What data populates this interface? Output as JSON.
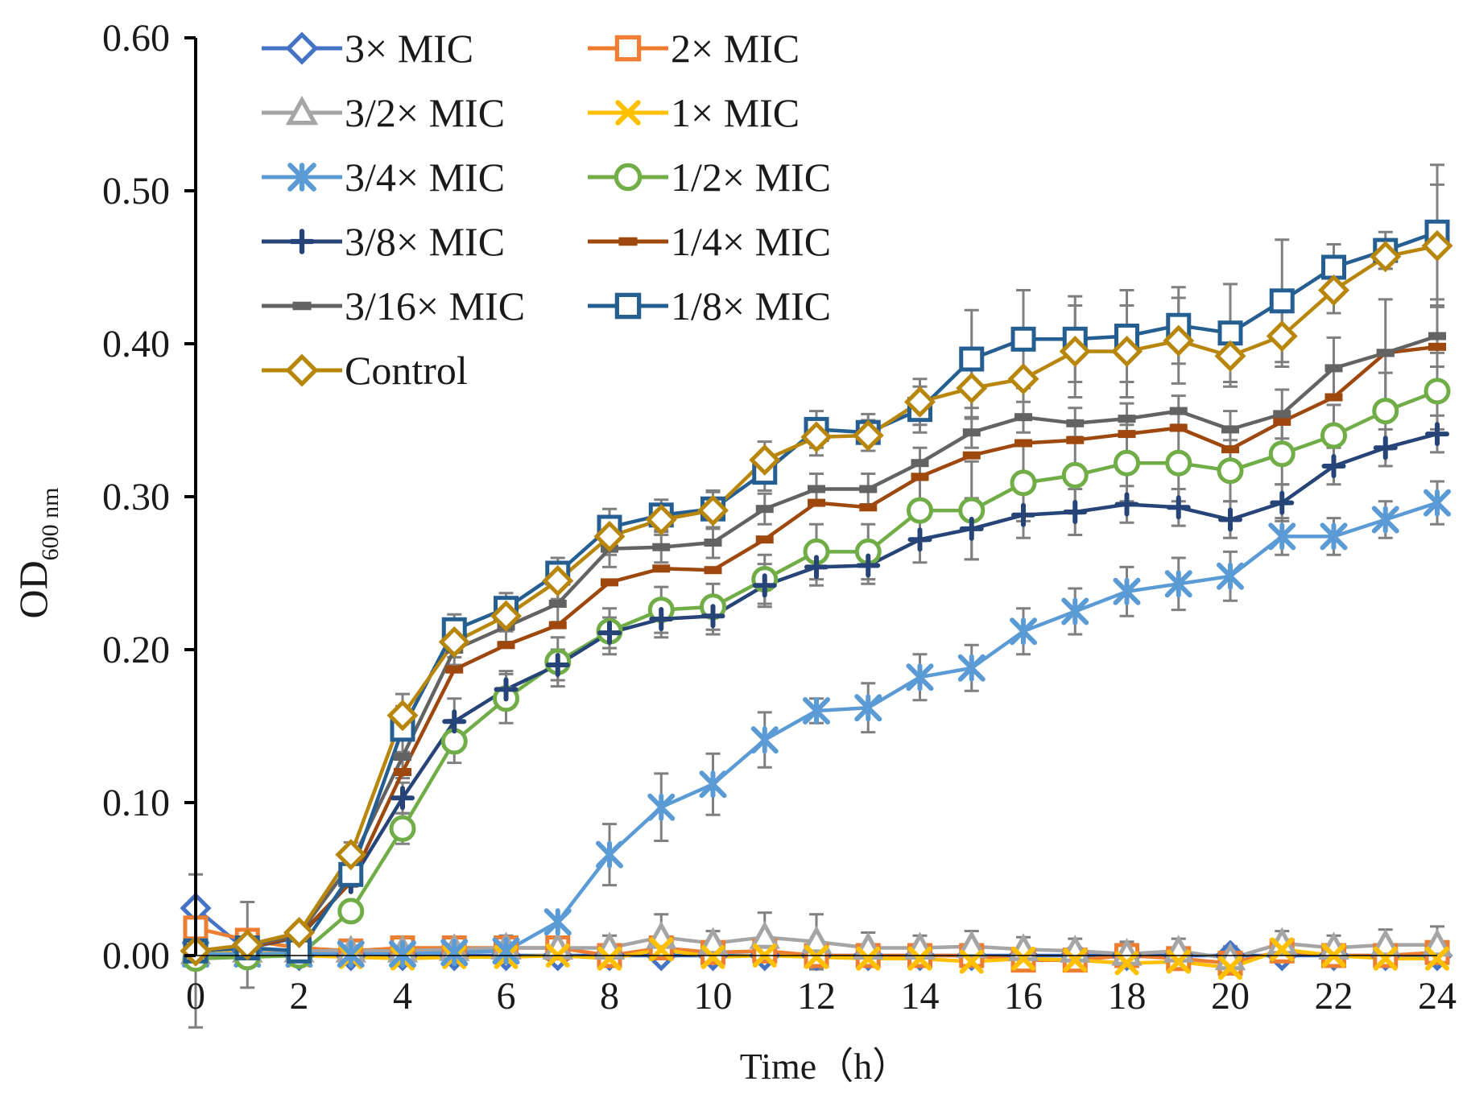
{
  "chart_data": {
    "type": "line",
    "title": "",
    "xlabel": "Time（h）",
    "ylabel_main": "OD",
    "ylabel_sub": "600 nm",
    "x": [
      0,
      1,
      2,
      3,
      4,
      5,
      6,
      7,
      8,
      9,
      10,
      11,
      12,
      13,
      14,
      15,
      16,
      17,
      18,
      19,
      20,
      21,
      22,
      23,
      24
    ],
    "xlim": [
      0,
      24
    ],
    "ylim": [
      0,
      0.6
    ],
    "xticks": [
      0,
      2,
      4,
      6,
      8,
      10,
      12,
      14,
      16,
      18,
      20,
      22,
      24
    ],
    "xtick_labels": [
      "0",
      "2",
      "4",
      "6",
      "8",
      "10",
      "12",
      "14",
      "16",
      "18",
      "20",
      "22",
      "24"
    ],
    "yticks": [
      0,
      0.1,
      0.2,
      0.3,
      0.4,
      0.5,
      0.6
    ],
    "ytick_labels": [
      "0.00",
      "0.10",
      "0.20",
      "0.30",
      "0.40",
      "0.50",
      "0.60"
    ],
    "grid": false,
    "legend_position": "top-left",
    "series": [
      {
        "name": "3× MIC",
        "color": "#4472C4",
        "marker": "diamond-open",
        "values": [
          0.031,
          0.003,
          0.0,
          0.0,
          0.0,
          0.0,
          0.0,
          0.0,
          0.0,
          0.0,
          0.0,
          0.0,
          0.0,
          0.0,
          0.0,
          0.0,
          0.0,
          0.0,
          0.0,
          0.0,
          0.0,
          0.0,
          0.0,
          0.0,
          0.0
        ],
        "errors": [
          0,
          0,
          0,
          0,
          0,
          0,
          0,
          0,
          0,
          0,
          0,
          0,
          0,
          0,
          0,
          0,
          0,
          0,
          0,
          0,
          0,
          0,
          0,
          0,
          0
        ]
      },
      {
        "name": "2× MIC",
        "color": "#ED7D31",
        "marker": "square-open",
        "values": [
          0.018,
          0.01,
          0.005,
          0.003,
          0.005,
          0.005,
          0.005,
          0.005,
          0.0,
          0.005,
          0.002,
          0.003,
          0.0,
          0.0,
          0.0,
          0.0,
          -0.003,
          -0.003,
          0.0,
          -0.002,
          -0.005,
          0.003,
          0.0,
          0.0,
          0.002
        ],
        "errors": [
          0,
          0,
          0,
          0,
          0,
          0,
          0,
          0,
          0,
          0,
          0,
          0,
          0,
          0,
          0,
          0,
          0,
          0,
          0,
          0,
          0,
          0,
          0,
          0,
          0
        ]
      },
      {
        "name": "3/2× MIC",
        "color": "#A5A5A5",
        "marker": "triangle-open",
        "values": [
          0.002,
          0.003,
          0.003,
          0.003,
          0.003,
          0.004,
          0.005,
          0.005,
          0.005,
          0.012,
          0.008,
          0.012,
          0.009,
          0.005,
          0.005,
          0.006,
          0.004,
          0.003,
          0.001,
          0.003,
          -0.002,
          0.008,
          0.005,
          0.007,
          0.007
        ],
        "errors": [
          0,
          0,
          0,
          0,
          0,
          0,
          0.008,
          0,
          0.008,
          0.015,
          0.008,
          0.016,
          0.018,
          0.01,
          0.008,
          0.01,
          0.008,
          0.008,
          0.008,
          0.008,
          0.008,
          0.008,
          0.008,
          0.01,
          0.012
        ]
      },
      {
        "name": "1× MIC",
        "color": "#FFC000",
        "marker": "x",
        "values": [
          0.001,
          0.002,
          0.0,
          -0.001,
          -0.002,
          -0.001,
          -0.001,
          0.0,
          -0.002,
          0.004,
          -0.001,
          0.0,
          -0.001,
          -0.002,
          -0.002,
          -0.004,
          -0.002,
          -0.003,
          -0.005,
          -0.004,
          -0.008,
          0.004,
          0.0,
          -0.002,
          -0.002
        ],
        "errors": [
          0,
          0,
          0,
          0,
          0,
          0,
          0,
          0,
          0,
          0,
          0,
          0,
          0,
          0,
          0,
          0,
          0,
          0,
          0,
          0,
          0,
          0,
          0,
          0,
          0
        ]
      },
      {
        "name": "3/4× MIC",
        "color": "#5B9BD5",
        "marker": "asterisk",
        "values": [
          0.001,
          0.001,
          0.001,
          0.001,
          0.001,
          0.002,
          0.003,
          0.022,
          0.066,
          0.097,
          0.112,
          0.141,
          0.16,
          0.162,
          0.182,
          0.188,
          0.212,
          0.225,
          0.238,
          0.243,
          0.248,
          0.274,
          0.274,
          0.285,
          0.296
        ],
        "errors": [
          0,
          0,
          0,
          0,
          0,
          0,
          0,
          0,
          0.02,
          0.022,
          0.02,
          0.018,
          0.008,
          0.016,
          0.015,
          0.015,
          0.015,
          0.015,
          0.016,
          0.017,
          0.016,
          0.012,
          0.012,
          0.012,
          0.014
        ]
      },
      {
        "name": "1/2× MIC",
        "color": "#70AD47",
        "marker": "circle-open",
        "values": [
          -0.002,
          -0.001,
          0.0,
          0.029,
          0.083,
          0.14,
          0.168,
          0.192,
          0.212,
          0.226,
          0.228,
          0.246,
          0.264,
          0.264,
          0.291,
          0.291,
          0.309,
          0.314,
          0.322,
          0.322,
          0.317,
          0.328,
          0.34,
          0.356,
          0.369
        ],
        "errors": [
          0,
          0,
          0,
          0.005,
          0.01,
          0.014,
          0.016,
          0.016,
          0.015,
          0.015,
          0.015,
          0.016,
          0.018,
          0.018,
          0.02,
          0.032,
          0.025,
          0.025,
          0.025,
          0.025,
          0.02,
          0.02,
          0.02,
          0.025,
          0.025
        ]
      },
      {
        "name": "3/8× MIC",
        "color": "#264478",
        "marker": "plus",
        "values": [
          0.003,
          0.005,
          0.012,
          0.048,
          0.103,
          0.153,
          0.174,
          0.19,
          0.211,
          0.22,
          0.222,
          0.242,
          0.254,
          0.255,
          0.272,
          0.279,
          0.288,
          0.29,
          0.295,
          0.293,
          0.285,
          0.296,
          0.32,
          0.332,
          0.341
        ],
        "errors": [
          0,
          0,
          0,
          0,
          0.01,
          0.015,
          0.012,
          0.01,
          0.01,
          0.012,
          0.012,
          0.014,
          0.012,
          0.012,
          0.015,
          0.02,
          0.015,
          0.015,
          0.012,
          0.012,
          0.012,
          0.012,
          0.012,
          0.012,
          0.012
        ]
      },
      {
        "name": "1/4× MIC",
        "color": "#9E480E",
        "marker": "dash",
        "values": [
          0.003,
          0.005,
          0.013,
          0.048,
          0.12,
          0.187,
          0.203,
          0.216,
          0.244,
          0.253,
          0.252,
          0.272,
          0.296,
          0.293,
          0.313,
          0.327,
          0.335,
          0.337,
          0.341,
          0.345,
          0.331,
          0.349,
          0.365,
          0.394,
          0.398
        ],
        "errors": [
          0,
          0,
          0,
          0,
          0,
          0,
          0,
          0,
          0,
          0,
          0,
          0,
          0,
          0,
          0,
          0,
          0,
          0,
          0,
          0,
          0,
          0,
          0,
          0,
          0
        ]
      },
      {
        "name": "3/16× MIC",
        "color": "#636363",
        "marker": "dash",
        "values": [
          0.003,
          0.006,
          0.014,
          0.06,
          0.13,
          0.2,
          0.215,
          0.23,
          0.266,
          0.267,
          0.27,
          0.292,
          0.305,
          0.305,
          0.322,
          0.342,
          0.352,
          0.348,
          0.351,
          0.356,
          0.344,
          0.354,
          0.384,
          0.394,
          0.405
        ],
        "errors": [
          0,
          0,
          0,
          0.01,
          0.014,
          0.01,
          0.01,
          0.012,
          0.012,
          0.01,
          0.01,
          0.01,
          0.01,
          0.01,
          0.01,
          0.01,
          0.01,
          0.01,
          0.01,
          0.01,
          0.012,
          0.016,
          0.02,
          0.035,
          0.02
        ]
      },
      {
        "name": "1/8× MIC",
        "color": "#255E91",
        "marker": "square-open",
        "values": [
          0.003,
          0.005,
          0.003,
          0.053,
          0.148,
          0.213,
          0.227,
          0.25,
          0.28,
          0.288,
          0.292,
          0.316,
          0.344,
          0.342,
          0.357,
          0.39,
          0.403,
          0.403,
          0.405,
          0.412,
          0.407,
          0.428,
          0.45,
          0.461,
          0.473
        ],
        "errors": [
          0,
          0,
          0,
          0.008,
          0.015,
          0.01,
          0.01,
          0.01,
          0.012,
          0.01,
          0.012,
          0.012,
          0.012,
          0.012,
          0.015,
          0.032,
          0.032,
          0.028,
          0.03,
          0.025,
          0.032,
          0.04,
          0.015,
          0.012,
          0.044
        ]
      },
      {
        "name": "Control",
        "color": "#B8860B",
        "marker": "diamond-open",
        "values": [
          0.003,
          0.007,
          0.015,
          0.066,
          0.157,
          0.205,
          0.222,
          0.245,
          0.274,
          0.285,
          0.291,
          0.324,
          0.339,
          0.34,
          0.362,
          0.371,
          0.377,
          0.395,
          0.395,
          0.402,
          0.392,
          0.405,
          0.435,
          0.457,
          0.464
        ],
        "errors": [
          0.05,
          0.028,
          0.005,
          0.008,
          0.014,
          0.01,
          0.01,
          0.012,
          0.012,
          0.01,
          0.012,
          0.012,
          0.012,
          0.01,
          0.015,
          0.02,
          0.025,
          0.03,
          0.03,
          0.028,
          0.02,
          0.02,
          0.015,
          0.008,
          0.04
        ]
      }
    ]
  }
}
